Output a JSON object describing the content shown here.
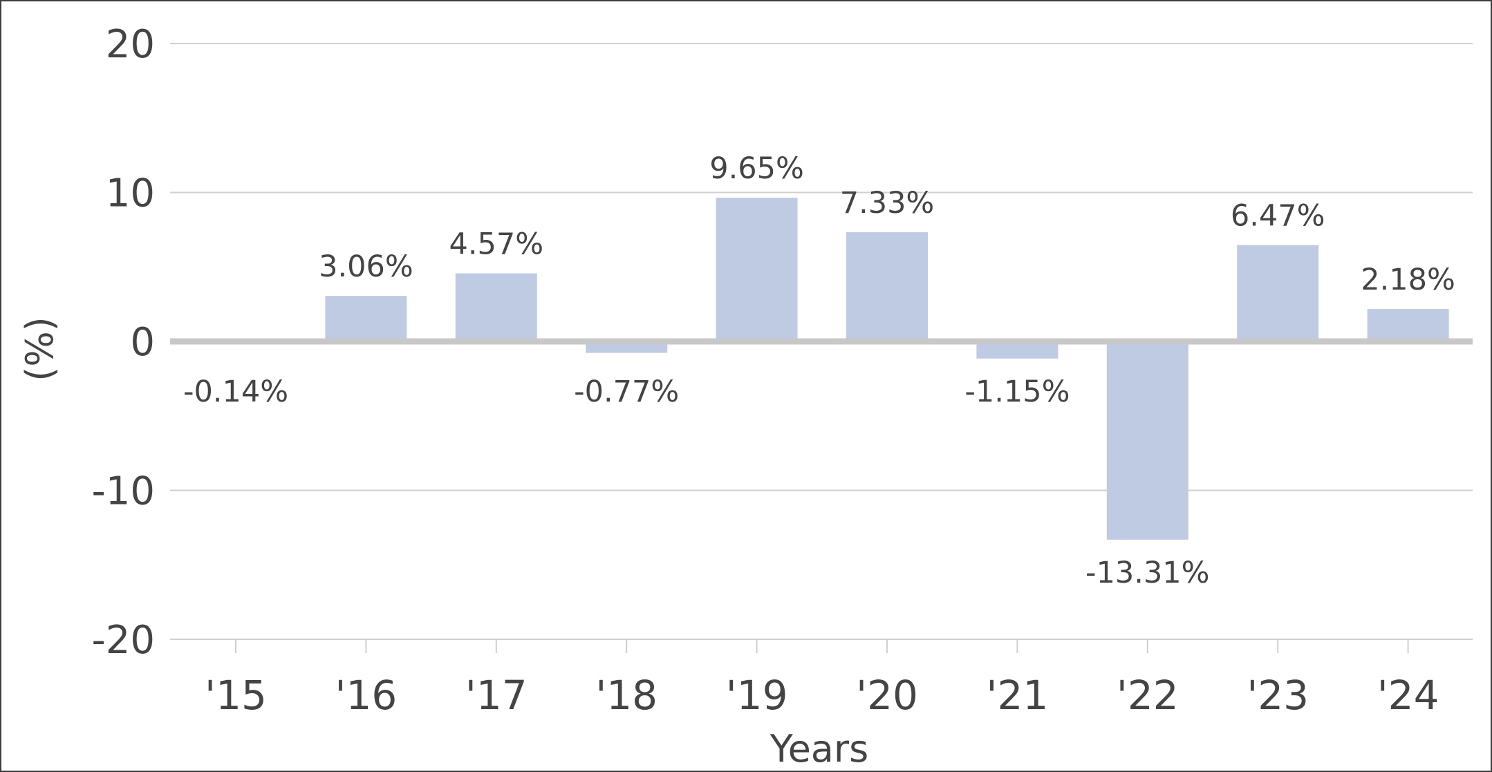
{
  "chart_data": {
    "type": "bar",
    "categories": [
      "'15",
      "'16",
      "'17",
      "'18",
      "'19",
      "'20",
      "'21",
      "'22",
      "'23",
      "'24"
    ],
    "values": [
      -0.14,
      3.06,
      4.57,
      -0.77,
      9.65,
      7.33,
      -1.15,
      -13.31,
      6.47,
      2.18
    ],
    "data_labels": [
      "-0.14%",
      "3.06%",
      "4.57%",
      "-0.77%",
      "9.65%",
      "7.33%",
      "-1.15%",
      "-13.31%",
      "6.47%",
      "2.18%"
    ],
    "xlabel": "Years",
    "ylabel": "(%)",
    "ylim": [
      -20,
      20
    ],
    "yticks": [
      20,
      10,
      0,
      -10,
      -20
    ],
    "ytick_labels": [
      "20",
      "10",
      "0",
      "-10",
      "-20"
    ],
    "grid": true,
    "legend": "none",
    "bar_color": "#bfcbe3",
    "zero_line_color": "#c8c8c8",
    "grid_color": "#cfcfcf",
    "text_color": "#444444"
  }
}
